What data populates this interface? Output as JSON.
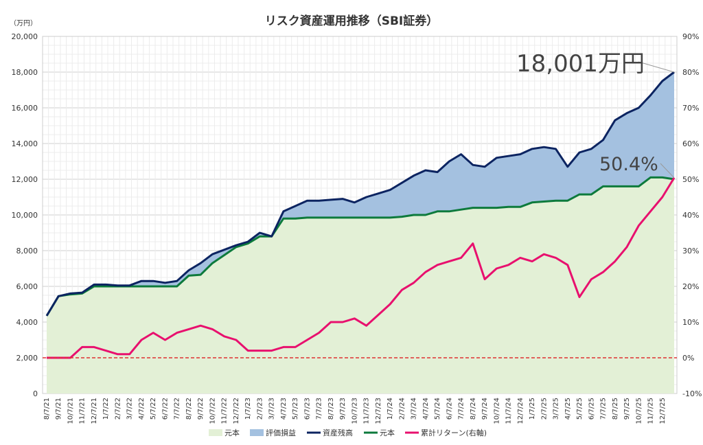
{
  "chart_data": {
    "type": "area",
    "title": "リスク資産運用推移（SBI証券）",
    "y_unit": "（万円）",
    "ylim": [
      0,
      20000
    ],
    "y_ticks": [
      "0",
      "2,000",
      "4,000",
      "6,000",
      "8,000",
      "10,000",
      "12,000",
      "14,000",
      "16,000",
      "18,000",
      "20,000"
    ],
    "y2lim": [
      -10,
      90
    ],
    "y2_ticks": [
      "-10%",
      "0%",
      "10%",
      "20%",
      "30%",
      "40%",
      "50%",
      "60%",
      "70%",
      "80%",
      "90%"
    ],
    "grid": true,
    "legend_position": "bottom",
    "x_tick_labels": [
      "8/7/21",
      "9/7/21",
      "10/7/21",
      "11/7/21",
      "12/7/21",
      "1/7/22",
      "2/7/22",
      "3/7/22",
      "4/7/22",
      "5/7/22",
      "6/7/22",
      "7/7/22",
      "8/7/22",
      "9/7/22",
      "10/7/22",
      "11/7/22",
      "12/7/22",
      "1/7/23",
      "2/7/23",
      "3/7/23",
      "4/7/23",
      "5/7/23",
      "6/7/23",
      "7/7/23",
      "8/7/23",
      "9/7/23",
      "10/7/23",
      "11/7/23",
      "12/7/23",
      "1/7/24",
      "2/7/24",
      "3/7/24",
      "4/7/24",
      "5/7/24",
      "6/7/24",
      "7/7/24",
      "8/7/24",
      "9/7/24",
      "10/7/24",
      "11/7/24",
      "12/7/24",
      "1/7/25",
      "2/7/25",
      "3/7/25",
      "4/7/25",
      "5/7/25",
      "6/7/25",
      "7/7/25",
      "8/7/25",
      "9/7/25",
      "10/7/25",
      "11/7/25",
      "12/7/25"
    ],
    "x_months": [
      0,
      1,
      2,
      3,
      4,
      5,
      6,
      7,
      8,
      9,
      10,
      11,
      12,
      13,
      14,
      15,
      16,
      17,
      18,
      19,
      20,
      21,
      22,
      23,
      24,
      25,
      26,
      27,
      28,
      29,
      30,
      31,
      32,
      33,
      34,
      35,
      36,
      37,
      38,
      39,
      40,
      41,
      42,
      43,
      44,
      45,
      46,
      47,
      48,
      49,
      50,
      51,
      52,
      53
    ],
    "principal": [
      4350,
      5450,
      5550,
      5600,
      6000,
      6000,
      6000,
      6000,
      6000,
      6000,
      6000,
      6000,
      6600,
      6650,
      7300,
      7750,
      8200,
      8400,
      8800,
      8800,
      9800,
      9800,
      9850,
      9850,
      9850,
      9850,
      9850,
      9850,
      9850,
      9850,
      9900,
      10000,
      10000,
      10200,
      10200,
      10300,
      10400,
      10400,
      10400,
      10450,
      10450,
      10700,
      10750,
      10800,
      10800,
      11150,
      11150,
      11600,
      11600,
      11600,
      11600,
      12100,
      12100,
      12000
    ],
    "total_assets": [
      4350,
      5450,
      5600,
      5650,
      6100,
      6100,
      6050,
      6050,
      6300,
      6300,
      6200,
      6300,
      6900,
      7300,
      7800,
      8050,
      8300,
      8500,
      9000,
      8800,
      10200,
      10500,
      10800,
      10800,
      10850,
      10900,
      10700,
      11000,
      11200,
      11400,
      11800,
      12200,
      12500,
      12400,
      13000,
      13400,
      12800,
      12700,
      13200,
      13300,
      13400,
      13700,
      13800,
      13700,
      12700,
      13500,
      13700,
      14200,
      15300,
      15700,
      16000,
      16700,
      17500,
      18001
    ],
    "cumulative_return_pct": [
      0,
      0,
      0,
      3,
      3,
      2,
      1,
      1,
      5,
      7,
      5,
      7,
      8,
      9,
      8,
      6,
      5,
      2,
      2,
      2,
      3,
      3,
      5,
      7,
      10,
      10,
      11,
      9,
      12,
      15,
      19,
      21,
      24,
      26,
      27,
      28,
      32,
      22,
      25,
      26,
      28,
      27,
      29,
      28,
      26,
      17,
      22,
      24,
      27,
      31,
      37,
      41,
      45,
      50.4
    ],
    "series": [
      {
        "name": "元本",
        "type": "area",
        "color": "#e3f0d6"
      },
      {
        "name": "評価損益",
        "type": "area",
        "color": "#a4c1e0"
      },
      {
        "name": "資産残高",
        "type": "line",
        "color": "#0c2461"
      },
      {
        "name": "元本",
        "type": "line",
        "color": "#0d7a3c"
      },
      {
        "name": "累計リターン(右軸)",
        "type": "line",
        "color": "#e8106e"
      }
    ],
    "zero_line_color": "#e03030",
    "annotations": [
      {
        "text": "18,001万円"
      },
      {
        "text": "50.4%"
      }
    ]
  }
}
